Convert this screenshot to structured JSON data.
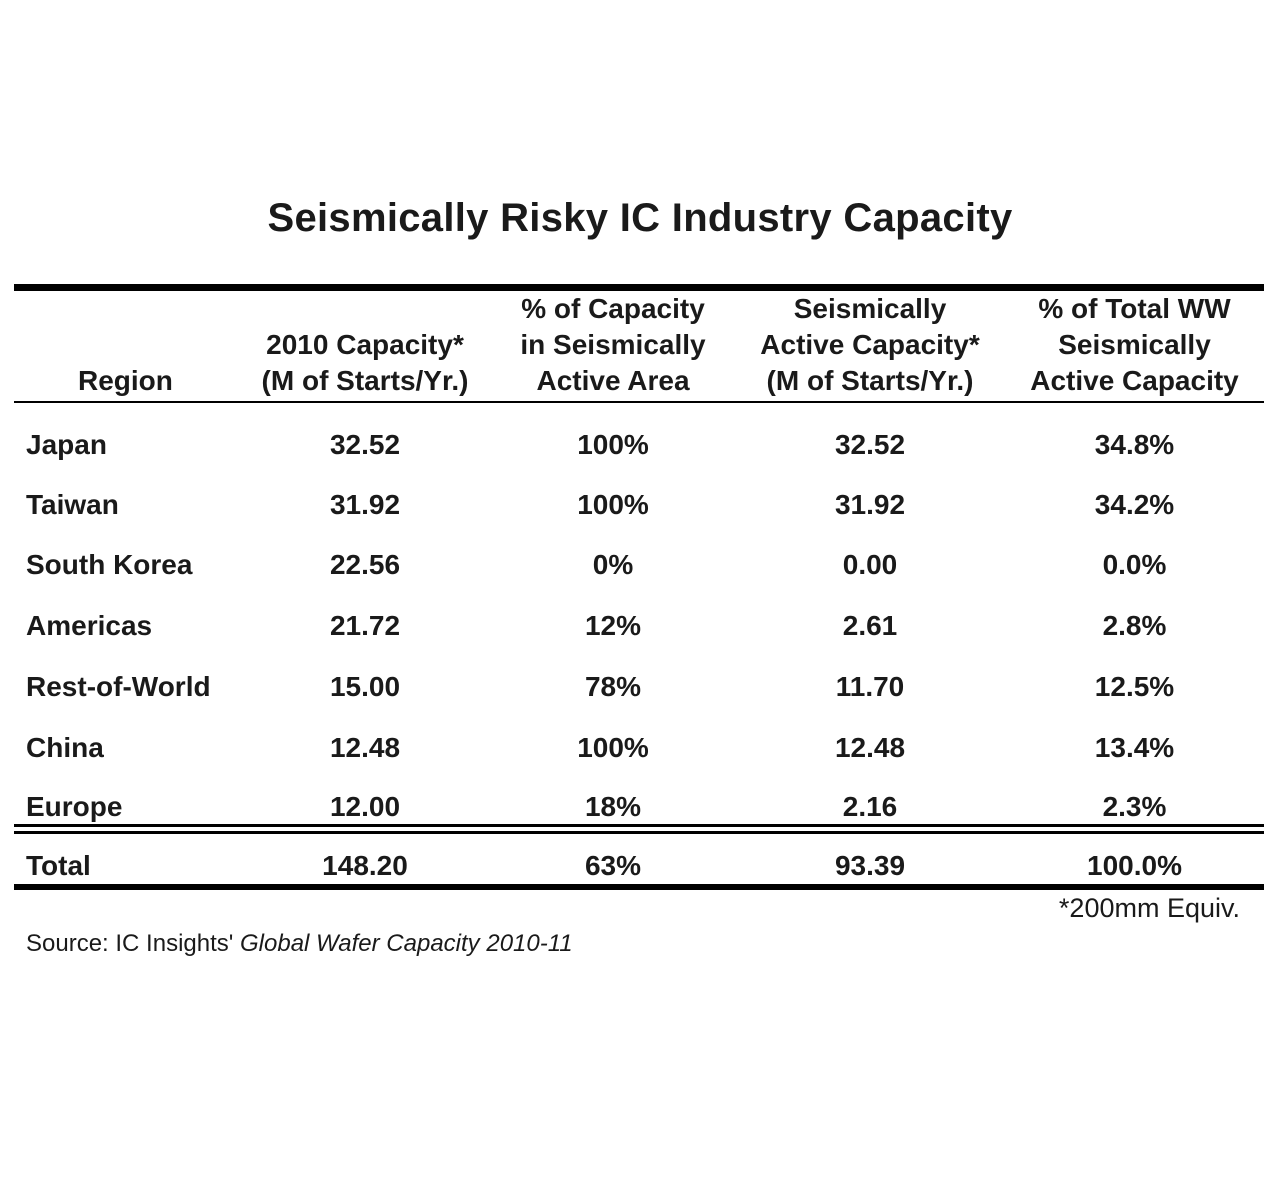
{
  "chart_data": {
    "type": "table",
    "title": "Seismically Risky IC Industry Capacity",
    "columns": [
      {
        "lines": [
          "Region"
        ]
      },
      {
        "lines": [
          "2010 Capacity*",
          "(M of Starts/Yr.)"
        ]
      },
      {
        "lines": [
          "% of Capacity",
          "in Seismically",
          "Active Area"
        ]
      },
      {
        "lines": [
          "Seismically",
          "Active Capacity*",
          "(M of Starts/Yr.)"
        ]
      },
      {
        "lines": [
          "% of Total WW",
          "Seismically",
          "Active Capacity"
        ]
      }
    ],
    "rows": [
      [
        "Japan",
        "32.52",
        "100%",
        "32.52",
        "34.8%"
      ],
      [
        "Taiwan",
        "31.92",
        "100%",
        "31.92",
        "34.2%"
      ],
      [
        "South Korea",
        "22.56",
        "0%",
        "0.00",
        "0.0%"
      ],
      [
        "Americas",
        "21.72",
        "12%",
        "2.61",
        "2.8%"
      ],
      [
        "Rest-of-World",
        "15.00",
        "78%",
        "11.70",
        "12.5%"
      ],
      [
        "China",
        "12.48",
        "100%",
        "12.48",
        "13.4%"
      ],
      [
        "Europe",
        "12.00",
        "18%",
        "2.16",
        "2.3%"
      ]
    ],
    "total": [
      "Total",
      "148.20",
      "63%",
      "93.39",
      "100.0%"
    ],
    "footnote": "*200mm Equiv.",
    "source_prefix": "Source: IC Insights' ",
    "source_title": "Global Wafer Capacity 2010-11"
  }
}
